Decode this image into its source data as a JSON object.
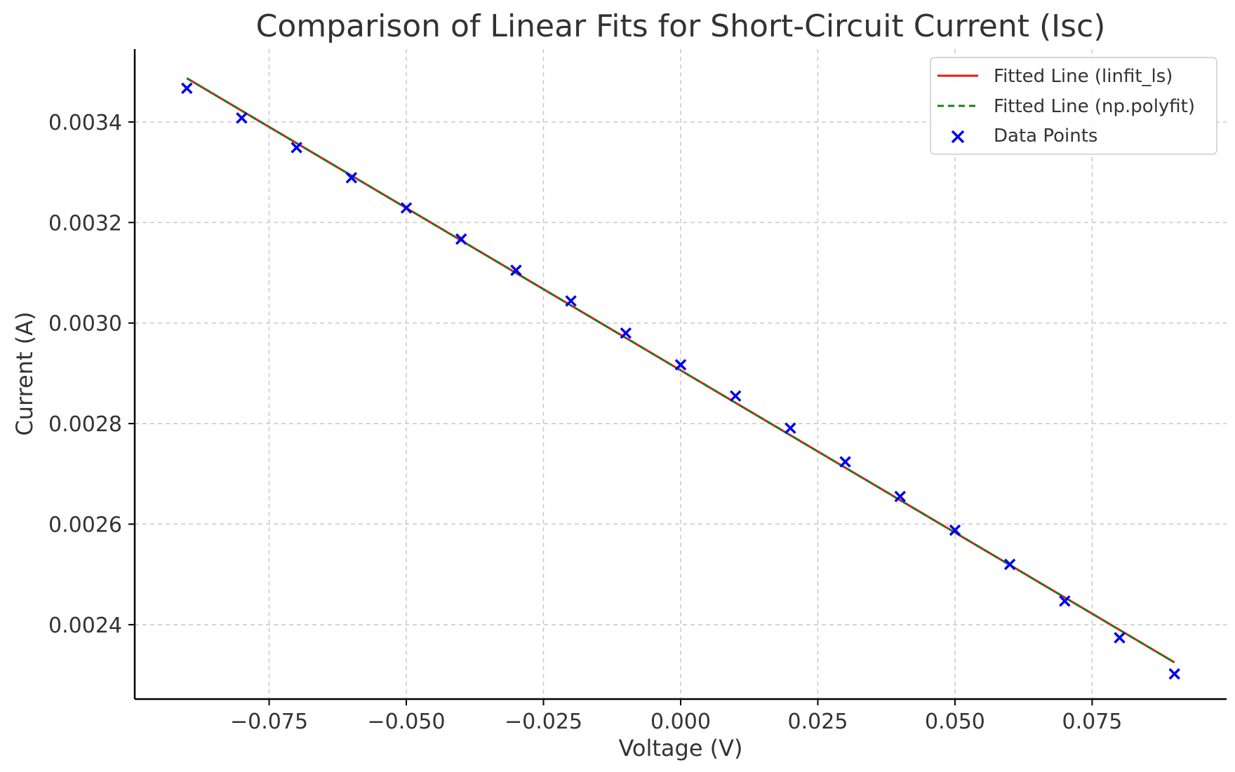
{
  "chart_data": {
    "type": "scatter",
    "title": "Comparison of Linear Fits for Short-Circuit Current (Isc)",
    "xlabel": "Voltage (V)",
    "ylabel": "Current (A)",
    "xlim": [
      -0.0995,
      0.0995
    ],
    "ylim": [
      0.002252,
      0.003545
    ],
    "x_ticks": [
      -0.075,
      -0.05,
      -0.025,
      0.0,
      0.025,
      0.05,
      0.075
    ],
    "x_tick_labels": [
      "−0.075",
      "−0.050",
      "−0.025",
      "0.000",
      "0.025",
      "0.050",
      "0.075"
    ],
    "y_ticks": [
      0.0024,
      0.0026,
      0.0028,
      0.003,
      0.0032,
      0.0034
    ],
    "y_tick_labels": [
      "0.0024",
      "0.0026",
      "0.0028",
      "0.0030",
      "0.0032",
      "0.0034"
    ],
    "grid": true,
    "legend_position": "top-right",
    "series": [
      {
        "name": "Fitted Line (linfit_ls)",
        "kind": "line",
        "style": "solid",
        "color": "#e41a1c",
        "x": [
          -0.09,
          0.09
        ],
        "y": [
          0.003487,
          0.002325
        ]
      },
      {
        "name": "Fitted Line (np.polyfit)",
        "kind": "line",
        "style": "dashed",
        "color": "#1a7f1a",
        "x": [
          -0.09,
          0.09
        ],
        "y": [
          0.003487,
          0.002325
        ]
      },
      {
        "name": "Data Points",
        "kind": "scatter",
        "marker": "x",
        "color": "#0000ee",
        "x": [
          -0.09,
          -0.08,
          -0.07,
          -0.06,
          -0.05,
          -0.04,
          -0.03,
          -0.02,
          -0.01,
          0.0,
          0.01,
          0.02,
          0.03,
          0.04,
          0.05,
          0.06,
          0.07,
          0.08,
          0.09
        ],
        "y": [
          0.003467,
          0.003408,
          0.003349,
          0.003289,
          0.003229,
          0.003167,
          0.003105,
          0.003044,
          0.00298,
          0.002917,
          0.002855,
          0.002791,
          0.002724,
          0.002655,
          0.002588,
          0.00252,
          0.002447,
          0.002374,
          0.002302
        ]
      }
    ]
  }
}
